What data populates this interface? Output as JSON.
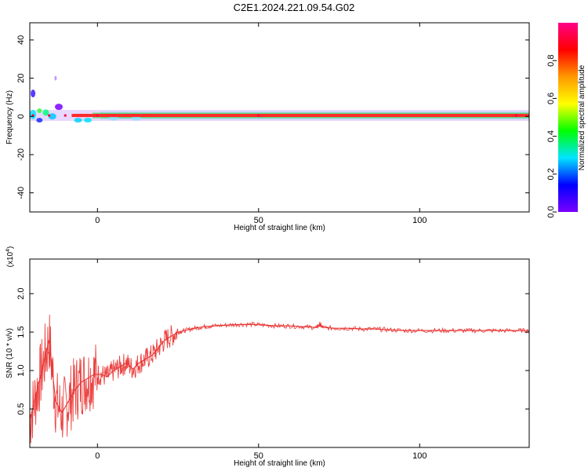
{
  "figure": {
    "title": "C2E1.2024.221.09.54.G02"
  },
  "chart_data": [
    {
      "type": "heatmap",
      "title": "C2E1.2024.221.09.54.G02",
      "xlabel": "Height of straight line (km)",
      "ylabel": "Frequency (Hz)",
      "xlim": [
        -21,
        134
      ],
      "ylim": [
        -50,
        49
      ],
      "xticks": [
        0,
        50,
        100
      ],
      "yticks": [
        40,
        20,
        0,
        -20,
        -40
      ],
      "colorbar": {
        "label": "Normalized spectral amplitude",
        "range": [
          0.0,
          1.0
        ],
        "ticks": [
          0.0,
          0.2,
          0.4,
          0.6,
          0.8
        ],
        "colormap": [
          "#7a00ff",
          "#0000ff",
          "#00e5ff",
          "#00ff00",
          "#ffff00",
          "#ff9900",
          "#ff0000",
          "#ff0088"
        ]
      },
      "description_points": [
        {
          "x": -20,
          "freq": 0.5,
          "amplitude": 0.45
        },
        {
          "x": -15,
          "freq": 0.5,
          "amplitude": 0.55
        },
        {
          "x": -10,
          "freq": 0.5,
          "amplitude": 0.85
        },
        {
          "x": 0,
          "freq": 0.5,
          "amplitude": 0.9
        },
        {
          "x": 50,
          "freq": 0.5,
          "amplitude": 0.95
        },
        {
          "x": 130,
          "freq": 0.5,
          "amplitude": 0.95
        }
      ]
    },
    {
      "type": "line",
      "xlabel": "Height of straight line (km)",
      "ylabel": "SNR (10 * v/v)",
      "yscale_label": "(x10",
      "yscale_exp": "4",
      "xlim": [
        -21,
        134
      ],
      "ylim": [
        0.0,
        2.45
      ],
      "xticks": [
        0,
        50,
        100
      ],
      "yticks": [
        0.5,
        1.0,
        1.5,
        2.0
      ],
      "series": [
        {
          "color": "#e8302f",
          "x": [
            -21,
            -19,
            -17,
            -15,
            -13,
            -11,
            -9,
            -7,
            -5,
            -3,
            -1,
            1,
            3,
            5,
            7,
            9,
            11,
            13,
            15,
            17,
            19,
            21,
            23,
            25,
            27,
            30,
            33,
            36,
            40,
            44,
            48,
            52,
            56,
            60,
            64,
            68,
            69,
            70,
            74,
            78,
            82,
            86,
            90,
            95,
            100,
            105,
            110,
            115,
            120,
            125,
            130,
            134
          ],
          "values": [
            0.35,
            0.7,
            1.05,
            1.4,
            0.6,
            0.45,
            0.6,
            0.75,
            0.85,
            0.9,
            0.95,
            0.95,
            0.92,
            1.0,
            1.05,
            1.1,
            1.02,
            1.1,
            1.15,
            1.2,
            1.3,
            1.4,
            1.45,
            1.5,
            1.52,
            1.55,
            1.57,
            1.58,
            1.59,
            1.6,
            1.6,
            1.59,
            1.58,
            1.58,
            1.57,
            1.56,
            1.6,
            1.56,
            1.55,
            1.55,
            1.54,
            1.54,
            1.53,
            1.52,
            1.52,
            1.52,
            1.52,
            1.52,
            1.52,
            1.52,
            1.52,
            1.52
          ]
        }
      ]
    }
  ]
}
